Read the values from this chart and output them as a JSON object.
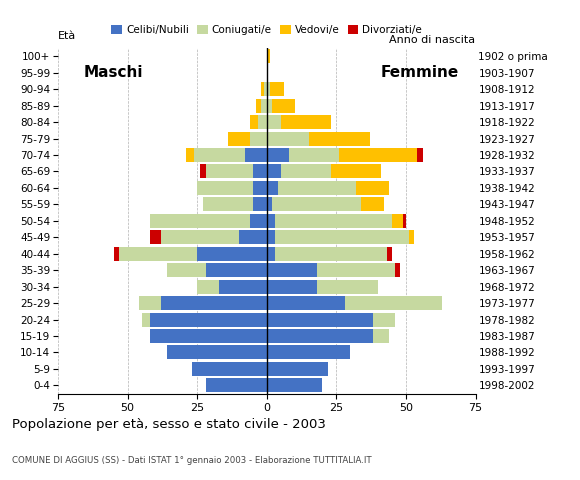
{
  "age_groups": [
    "0-4",
    "5-9",
    "10-14",
    "15-19",
    "20-24",
    "25-29",
    "30-34",
    "35-39",
    "40-44",
    "45-49",
    "50-54",
    "55-59",
    "60-64",
    "65-69",
    "70-74",
    "75-79",
    "80-84",
    "85-89",
    "90-94",
    "95-99",
    "100+"
  ],
  "birth_years": [
    "1998-2002",
    "1993-1997",
    "1988-1992",
    "1983-1987",
    "1978-1982",
    "1973-1977",
    "1968-1972",
    "1963-1967",
    "1958-1962",
    "1953-1957",
    "1948-1952",
    "1943-1947",
    "1938-1942",
    "1933-1937",
    "1928-1932",
    "1923-1927",
    "1918-1922",
    "1913-1917",
    "1908-1912",
    "1903-1907",
    "1902 o prima"
  ],
  "males_celibe": [
    22,
    27,
    36,
    42,
    42,
    38,
    17,
    22,
    25,
    10,
    6,
    5,
    5,
    5,
    8,
    0,
    0,
    0,
    0,
    0,
    0
  ],
  "males_coniugato": [
    0,
    0,
    0,
    0,
    3,
    8,
    8,
    14,
    28,
    28,
    36,
    18,
    20,
    17,
    18,
    6,
    3,
    2,
    1,
    0,
    0
  ],
  "males_vedovo": [
    0,
    0,
    0,
    0,
    0,
    0,
    0,
    0,
    0,
    0,
    0,
    0,
    0,
    0,
    3,
    8,
    3,
    2,
    1,
    0,
    0
  ],
  "males_divorziato": [
    0,
    0,
    0,
    0,
    0,
    0,
    0,
    0,
    2,
    4,
    0,
    0,
    0,
    2,
    0,
    0,
    0,
    0,
    0,
    0,
    0
  ],
  "females_nubile": [
    20,
    22,
    30,
    38,
    38,
    28,
    18,
    18,
    3,
    3,
    3,
    2,
    4,
    5,
    8,
    0,
    0,
    0,
    0,
    0,
    0
  ],
  "females_coniugata": [
    0,
    0,
    0,
    6,
    8,
    35,
    22,
    28,
    40,
    48,
    42,
    32,
    28,
    18,
    18,
    15,
    5,
    2,
    1,
    0,
    0
  ],
  "females_vedova": [
    0,
    0,
    0,
    0,
    0,
    0,
    0,
    0,
    0,
    2,
    4,
    8,
    12,
    18,
    28,
    22,
    18,
    8,
    5,
    0,
    1
  ],
  "females_divorziata": [
    0,
    0,
    0,
    0,
    0,
    0,
    0,
    2,
    2,
    0,
    1,
    0,
    0,
    0,
    2,
    0,
    0,
    0,
    0,
    0,
    0
  ],
  "colors": {
    "celibe": "#4472c4",
    "coniugato": "#c6d9a0",
    "vedovo": "#ffc000",
    "divorziato": "#cc0000"
  },
  "title": "Popolazione per età, sesso e stato civile - 2003",
  "subtitle": "COMUNE DI AGGIUS (SS) - Dati ISTAT 1° gennaio 2003 - Elaborazione TUTTITALIA.IT",
  "legend_labels": [
    "Celibi/Nubili",
    "Coniugati/e",
    "Vedovi/e",
    "Divorziati/e"
  ],
  "xlim": 75,
  "xtick_labels": [
    "75",
    "50",
    "25",
    "0",
    "25",
    "50",
    "75"
  ],
  "label_eta": "Età",
  "label_anno": "Anno di nascita",
  "label_maschi": "Maschi",
  "label_femmine": "Femmine"
}
